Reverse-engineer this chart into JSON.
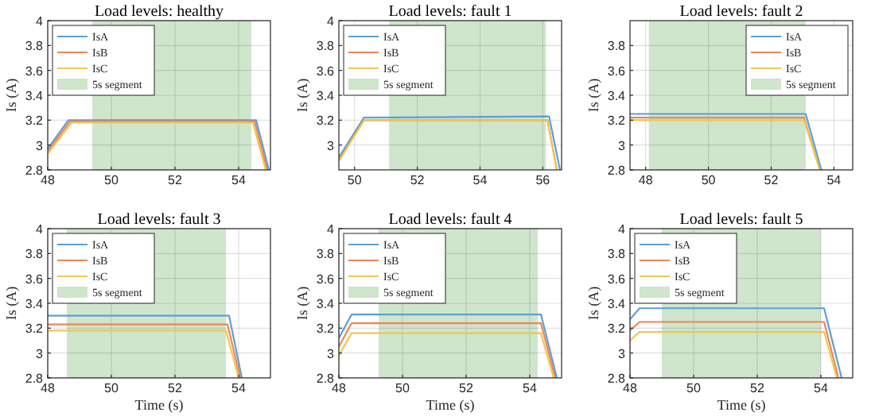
{
  "chart_data": [
    {
      "type": "line",
      "title": "Load levels: healthy",
      "xlim": [
        48,
        55
      ],
      "ylim": [
        2.8,
        4
      ],
      "xticks": [
        48,
        50,
        52,
        54
      ],
      "yticks": [
        2.8,
        3,
        3.2,
        3.4,
        3.6,
        3.8,
        4
      ],
      "ylabel": "Is (A)",
      "grid": true,
      "legend": "top left",
      "bands": [
        {
          "axis": "x",
          "from": 49.4,
          "to": 54.4,
          "label": "5s segment",
          "color": "#cfe5cc"
        }
      ],
      "series": [
        {
          "name": "IsA",
          "color": "#5b9fd8",
          "x": [
            48,
            48.65,
            54.55,
            54.95
          ],
          "values": [
            2.97,
            3.2,
            3.2,
            2.8
          ]
        },
        {
          "name": "IsB",
          "color": "#ee8455",
          "x": [
            48,
            48.7,
            54.5,
            54.9
          ],
          "values": [
            2.95,
            3.19,
            3.19,
            2.8
          ]
        },
        {
          "name": "IsC",
          "color": "#f0c650",
          "x": [
            48,
            48.75,
            54.45,
            54.85
          ],
          "values": [
            2.93,
            3.18,
            3.18,
            2.8
          ]
        }
      ]
    },
    {
      "type": "line",
      "title": "Load levels: fault 1",
      "xlim": [
        49.5,
        56.6
      ],
      "ylim": [
        2.8,
        4
      ],
      "xticks": [
        50,
        52,
        54,
        56
      ],
      "yticks": [
        3,
        3.2,
        3.4,
        3.6,
        3.8,
        4
      ],
      "ylabel": "Is (A)",
      "grid": true,
      "legend": "top left",
      "bands": [
        {
          "axis": "x",
          "from": 51.1,
          "to": 56.1,
          "label": "5s segment",
          "color": "#cfe5cc"
        }
      ],
      "series": [
        {
          "name": "IsA",
          "color": "#5b9fd8",
          "x": [
            49.5,
            50.3,
            56.2,
            56.55
          ],
          "values": [
            2.9,
            3.22,
            3.23,
            2.8
          ]
        },
        {
          "name": "IsB",
          "color": "#ee8455",
          "x": [
            49.5,
            50.3,
            56.15,
            56.45
          ],
          "values": [
            2.88,
            3.2,
            3.2,
            2.8
          ]
        },
        {
          "name": "IsC",
          "color": "#f0c650",
          "x": [
            49.5,
            50.3,
            56.15,
            56.45
          ],
          "values": [
            2.87,
            3.2,
            3.2,
            2.8
          ]
        }
      ]
    },
    {
      "type": "line",
      "title": "Load levels: fault 2",
      "xlim": [
        47.5,
        54.6
      ],
      "ylim": [
        2.8,
        4
      ],
      "xticks": [
        48,
        50,
        52,
        54
      ],
      "yticks": [
        2.8,
        3,
        3.2,
        3.4,
        3.6,
        3.8
      ],
      "ylabel": "Is (A)",
      "grid": true,
      "legend": "top right",
      "bands": [
        {
          "axis": "x",
          "from": 48.1,
          "to": 53.1,
          "label": "5s segment",
          "color": "#cfe5cc"
        }
      ],
      "series": [
        {
          "name": "IsA",
          "color": "#5b9fd8",
          "x": [
            47.5,
            53.1,
            53.6
          ],
          "values": [
            3.25,
            3.25,
            2.8
          ]
        },
        {
          "name": "IsB",
          "color": "#ee8455",
          "x": [
            47.5,
            53.05,
            53.55
          ],
          "values": [
            3.22,
            3.22,
            2.8
          ]
        },
        {
          "name": "IsC",
          "color": "#f0c650",
          "x": [
            47.5,
            53.05,
            53.55
          ],
          "values": [
            3.2,
            3.2,
            2.8
          ]
        }
      ]
    },
    {
      "type": "line",
      "title": "Load levels: fault 3",
      "xlim": [
        48,
        55
      ],
      "ylim": [
        2.8,
        4
      ],
      "xticks": [
        48,
        50,
        52,
        54
      ],
      "yticks": [
        2.8,
        3,
        3.2,
        3.4,
        3.6,
        3.8,
        4
      ],
      "xlabel": "Time (s)",
      "ylabel": "Is (A)",
      "grid": true,
      "legend": "top left",
      "bands": [
        {
          "axis": "x",
          "from": 48.6,
          "to": 53.6,
          "label": "5s segment",
          "color": "#cfe5cc"
        }
      ],
      "series": [
        {
          "name": "IsA",
          "color": "#5b9fd8",
          "x": [
            48,
            53.7,
            54.1
          ],
          "values": [
            3.3,
            3.3,
            2.8
          ]
        },
        {
          "name": "IsB",
          "color": "#ee8455",
          "x": [
            48,
            53.65,
            54.05
          ],
          "values": [
            3.23,
            3.23,
            2.8
          ]
        },
        {
          "name": "IsC",
          "color": "#f0c650",
          "x": [
            48,
            53.6,
            54
          ],
          "values": [
            3.18,
            3.18,
            2.8
          ]
        }
      ]
    },
    {
      "type": "line",
      "title": "Load levels: fault 4",
      "xlim": [
        48,
        55
      ],
      "ylim": [
        2.8,
        4
      ],
      "xticks": [
        48,
        50,
        52,
        54
      ],
      "yticks": [
        2.8,
        3,
        3.2,
        3.4,
        3.6,
        3.8,
        4
      ],
      "xlabel": "Time (s)",
      "ylabel": "Is (A)",
      "grid": true,
      "legend": "top left",
      "bands": [
        {
          "axis": "x",
          "from": 49.25,
          "to": 54.25,
          "label": "5s segment",
          "color": "#cfe5cc"
        }
      ],
      "series": [
        {
          "name": "IsA",
          "color": "#5b9fd8",
          "x": [
            48,
            48.4,
            54.35,
            54.85
          ],
          "values": [
            3.12,
            3.31,
            3.31,
            2.8
          ]
        },
        {
          "name": "IsB",
          "color": "#ee8455",
          "x": [
            48,
            48.4,
            54.35,
            54.8
          ],
          "values": [
            3.05,
            3.24,
            3.24,
            2.8
          ]
        },
        {
          "name": "IsC",
          "color": "#f0c650",
          "x": [
            48,
            48.4,
            54.35,
            54.75
          ],
          "values": [
            2.98,
            3.16,
            3.16,
            2.8
          ]
        }
      ]
    },
    {
      "type": "line",
      "title": "Load levels: fault 5",
      "xlim": [
        48,
        55
      ],
      "ylim": [
        2.8,
        4
      ],
      "xticks": [
        48,
        50,
        52,
        54
      ],
      "yticks": [
        2.8,
        3,
        3.2,
        3.4,
        3.6,
        3.8,
        4
      ],
      "xlabel": "Time (s)",
      "ylabel": "Is (A)",
      "grid": true,
      "legend": "top left",
      "bands": [
        {
          "axis": "x",
          "from": 49,
          "to": 54,
          "label": "5s segment",
          "color": "#cfe5cc"
        }
      ],
      "series": [
        {
          "name": "IsA",
          "color": "#5b9fd8",
          "x": [
            48,
            48.3,
            54.1,
            54.65
          ],
          "values": [
            3.27,
            3.36,
            3.36,
            2.8
          ]
        },
        {
          "name": "IsB",
          "color": "#ee8455",
          "x": [
            48,
            48.3,
            54.1,
            54.55
          ],
          "values": [
            3.18,
            3.25,
            3.25,
            2.8
          ]
        },
        {
          "name": "IsC",
          "color": "#f0c650",
          "x": [
            48,
            48.3,
            54.1,
            54.5
          ],
          "values": [
            3.1,
            3.17,
            3.17,
            2.8
          ]
        }
      ]
    }
  ]
}
